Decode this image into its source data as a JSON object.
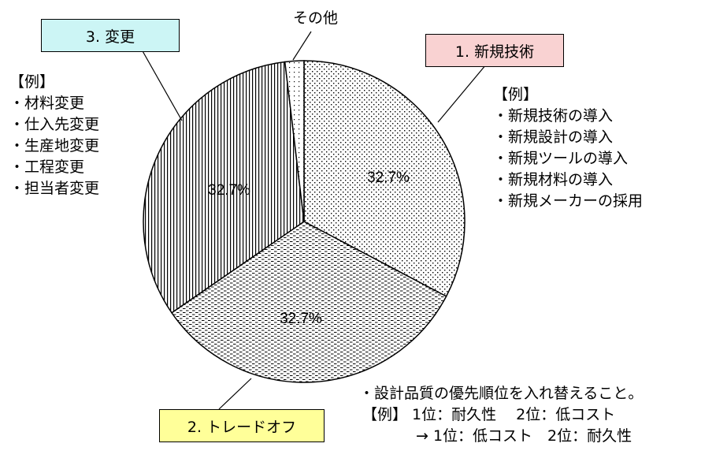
{
  "chart_data": {
    "type": "pie",
    "slices": [
      {
        "label": "1. 新規技術",
        "value": 32.7,
        "value_label": "32.7%",
        "color": "#f9d2d2",
        "pattern": "dots"
      },
      {
        "label": "2. トレードオフ",
        "value": 32.7,
        "value_label": "32.7%",
        "color": "#ffff99",
        "pattern": "dashes"
      },
      {
        "label": "3. 変更",
        "value": 32.7,
        "value_label": "32.7%",
        "color": "#ccf5f5",
        "pattern": "vertical-lines"
      },
      {
        "label": "その他",
        "value": 1.9,
        "value_label": "",
        "pattern": "sparse-dots"
      }
    ]
  },
  "labels": {
    "other": "その他",
    "new_tech": "1. 新規技術",
    "tradeoff": "2. トレードオフ",
    "change": "3. 変更"
  },
  "new_tech_examples": {
    "header": "【例】",
    "items": [
      "・新規技術の導入",
      "・新規設計の導入",
      "・新規ツールの導入",
      "・新規材料の導入",
      "・新規メーカーの採用"
    ]
  },
  "change_examples": {
    "header": "【例】",
    "items": [
      "・材料変更",
      "・仕入先変更",
      "・生産地変更",
      "・工程変更",
      "・担当者変更"
    ]
  },
  "tradeoff_note": {
    "line1": "・設計品質の優先順位を入れ替えること。",
    "line2": "【例】 1位：耐久性　 2位：低コスト",
    "line3": "→ 1位：低コスト　2位：耐久性"
  }
}
